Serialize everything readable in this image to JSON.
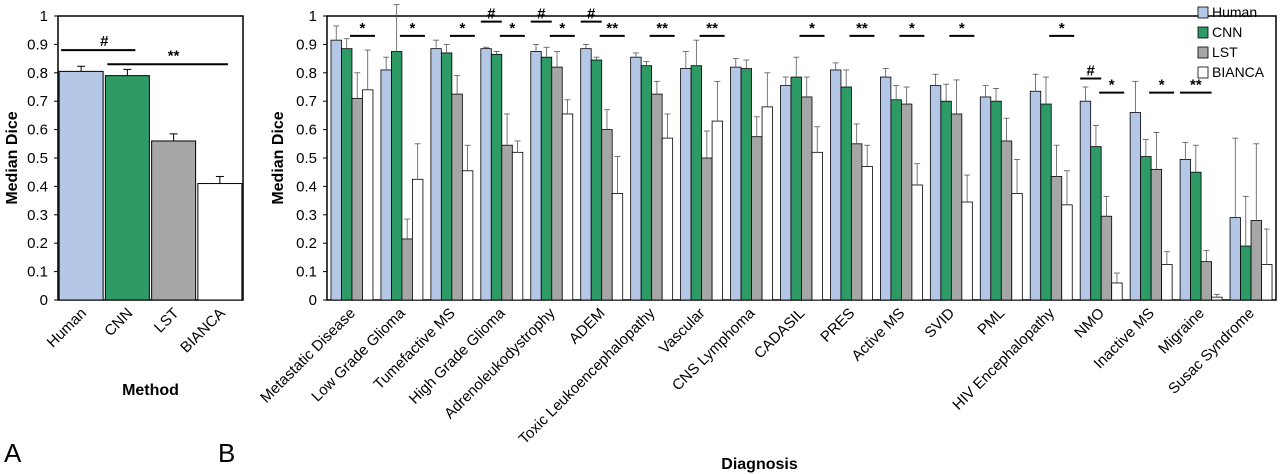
{
  "panel_labels": [
    "A",
    "B"
  ],
  "chart_data": [
    {
      "type": "bar",
      "ylabel": "Median Dice",
      "xlabel": "Method",
      "ylim": [
        0,
        1
      ],
      "yticks": [
        "0",
        "0.1",
        "0.2",
        "0.3",
        "0.4",
        "0.5",
        "0.6",
        "0.7",
        "0.8",
        "0.9",
        "1"
      ],
      "categories": [
        "Human",
        "CNN",
        "LST",
        "BIANCA"
      ],
      "values": [
        0.805,
        0.79,
        0.56,
        0.41
      ],
      "errors": [
        0.018,
        0.022,
        0.025,
        0.025
      ],
      "colors": [
        "#b4c7e7",
        "#2e9a65",
        "#a6a6a6",
        "#ffffff"
      ],
      "significance": [
        {
          "from": 0,
          "to": 1,
          "y": 0.88,
          "label": "#"
        },
        {
          "from": 1,
          "to": 3,
          "y": 0.83,
          "label": "**"
        }
      ]
    },
    {
      "type": "bar",
      "ylabel": "Median Dice",
      "xlabel": "Diagnosis",
      "ylim": [
        0,
        1
      ],
      "yticks": [
        "0",
        "0.1",
        "0.2",
        "0.3",
        "0.4",
        "0.5",
        "0.6",
        "0.7",
        "0.8",
        "0.9",
        "1"
      ],
      "legend_position": "top-right",
      "categories": [
        "Metastatic Disease",
        "Low Grade Glioma",
        "Tumefactive MS",
        "High Grade Glioma",
        "Adrenoleukodystrophy",
        "ADEM",
        "Toxic Leukoencephalopathy",
        "Vascular",
        "CNS Lymphoma",
        "CADASIL",
        "PRES",
        "Active MS",
        "SVID",
        "PML",
        "HIV Encephalopathy",
        "NMO",
        "Inactive MS",
        "Migraine",
        "Susac Syndrome"
      ],
      "series": [
        {
          "name": "Human",
          "color": "#b4c7e7",
          "values": [
            0.915,
            0.81,
            0.885,
            0.885,
            0.875,
            0.885,
            0.855,
            0.815,
            0.82,
            0.755,
            0.81,
            0.785,
            0.755,
            0.715,
            0.735,
            0.7,
            0.66,
            0.495,
            0.29
          ],
          "errors": [
            0.05,
            0.045,
            0.03,
            0.005,
            0.025,
            0.015,
            0.015,
            0.06,
            0.03,
            0.03,
            0.025,
            0.03,
            0.04,
            0.04,
            0.06,
            0.05,
            0.11,
            0.06,
            0.28
          ]
        },
        {
          "name": "CNN",
          "color": "#2e9a65",
          "values": [
            0.885,
            0.875,
            0.87,
            0.865,
            0.855,
            0.845,
            0.825,
            0.825,
            0.815,
            0.785,
            0.75,
            0.705,
            0.7,
            0.7,
            0.69,
            0.54,
            0.505,
            0.45,
            0.19
          ],
          "errors": [
            0.035,
            0.165,
            0.03,
            0.01,
            0.035,
            0.01,
            0.015,
            0.09,
            0.03,
            0.07,
            0.06,
            0.05,
            0.06,
            0.045,
            0.095,
            0.075,
            0.06,
            0.095,
            0.175
          ]
        },
        {
          "name": "LST",
          "color": "#a6a6a6",
          "values": [
            0.71,
            0.215,
            0.725,
            0.545,
            0.82,
            0.6,
            0.725,
            0.5,
            0.575,
            0.715,
            0.55,
            0.69,
            0.655,
            0.56,
            0.435,
            0.295,
            0.46,
            0.135,
            0.28
          ],
          "errors": [
            0.09,
            0.07,
            0.065,
            0.11,
            0.055,
            0.07,
            0.045,
            0.095,
            0.07,
            0.07,
            0.07,
            0.06,
            0.12,
            0.08,
            0.11,
            0.07,
            0.13,
            0.04,
            0.27
          ]
        },
        {
          "name": "BIANCA",
          "color": "#ffffff",
          "values": [
            0.74,
            0.425,
            0.455,
            0.52,
            0.655,
            0.375,
            0.57,
            0.63,
            0.68,
            0.52,
            0.47,
            0.405,
            0.345,
            0.375,
            0.335,
            0.06,
            0.125,
            0.01,
            0.125
          ],
          "errors": [
            0.14,
            0.125,
            0.09,
            0.04,
            0.05,
            0.13,
            0.085,
            0.14,
            0.12,
            0.09,
            0.075,
            0.075,
            0.095,
            0.12,
            0.12,
            0.035,
            0.045,
            0.01,
            0.125
          ]
        }
      ],
      "significance": [
        {
          "category": 0,
          "label": "*",
          "pairs": "CNN-BIANCA"
        },
        {
          "category": 1,
          "label": "*",
          "pairs": "CNN-BIANCA"
        },
        {
          "category": 2,
          "label": "*",
          "pairs": "CNN-BIANCA"
        },
        {
          "category": 3,
          "label": "#",
          "pairs": "Human-CNN"
        },
        {
          "category": 3,
          "label": "*",
          "pairs": "CNN-BIANCA"
        },
        {
          "category": 4,
          "label": "#",
          "pairs": "Human-CNN"
        },
        {
          "category": 4,
          "label": "*",
          "pairs": "CNN-BIANCA"
        },
        {
          "category": 5,
          "label": "#",
          "pairs": "Human-CNN"
        },
        {
          "category": 5,
          "label": "**",
          "pairs": "CNN-BIANCA"
        },
        {
          "category": 6,
          "label": "**",
          "pairs": "CNN-BIANCA"
        },
        {
          "category": 7,
          "label": "**",
          "pairs": "CNN-BIANCA"
        },
        {
          "category": 9,
          "label": "*",
          "pairs": "CNN-BIANCA"
        },
        {
          "category": 10,
          "label": "**",
          "pairs": "CNN-BIANCA"
        },
        {
          "category": 11,
          "label": "*",
          "pairs": "CNN-BIANCA"
        },
        {
          "category": 12,
          "label": "*",
          "pairs": "CNN-BIANCA"
        },
        {
          "category": 14,
          "label": "*",
          "pairs": "CNN-BIANCA"
        },
        {
          "category": 15,
          "label": "#",
          "pairs": "Human-CNN"
        },
        {
          "category": 15,
          "label": "*",
          "pairs": "CNN-BIANCA"
        },
        {
          "category": 16,
          "label": "*",
          "pairs": "CNN-BIANCA"
        },
        {
          "category": 17,
          "label": "**",
          "pairs": "Human-CNN"
        }
      ]
    }
  ]
}
